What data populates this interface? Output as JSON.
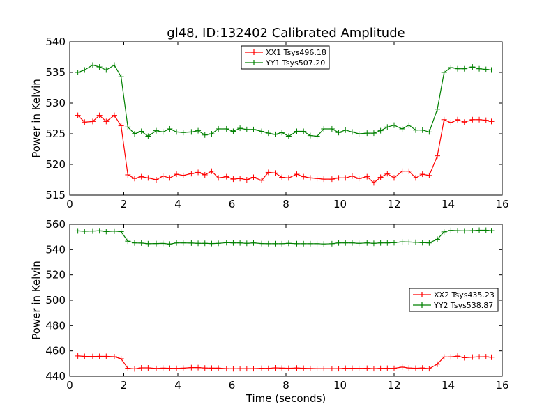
{
  "chart_data": [
    {
      "type": "line",
      "title": "gl48, ID:132402 Calibrated Amplitude",
      "xlabel": "",
      "ylabel": "Power in Kelvin",
      "xlim": [
        0,
        16
      ],
      "ylim": [
        515,
        540
      ],
      "xticks": [
        0,
        2,
        4,
        6,
        8,
        10,
        12,
        14,
        16
      ],
      "yticks": [
        515,
        520,
        525,
        530,
        535,
        540
      ],
      "grid": false,
      "legend": "top-center",
      "x": [
        0.3,
        0.55,
        0.85,
        1.1,
        1.35,
        1.65,
        1.9,
        2.15,
        2.4,
        2.65,
        2.9,
        3.2,
        3.45,
        3.7,
        3.95,
        4.2,
        4.5,
        4.75,
        5.0,
        5.25,
        5.5,
        5.8,
        6.05,
        6.3,
        6.55,
        6.8,
        7.1,
        7.35,
        7.6,
        7.85,
        8.1,
        8.4,
        8.65,
        8.9,
        9.15,
        9.4,
        9.7,
        9.95,
        10.2,
        10.45,
        10.7,
        11.0,
        11.25,
        11.5,
        11.75,
        12.0,
        12.3,
        12.55,
        12.8,
        13.05,
        13.3,
        13.6,
        13.85,
        14.1,
        14.35,
        14.6,
        14.9,
        15.15,
        15.4,
        15.6
      ],
      "series": [
        {
          "name": "XX1 Tsys496.18",
          "color": "#ff0000",
          "values": [
            528.0,
            526.9,
            527.0,
            528.0,
            527.0,
            528.0,
            526.3,
            518.3,
            517.7,
            518.0,
            517.8,
            517.5,
            518.1,
            517.8,
            518.4,
            518.2,
            518.5,
            518.7,
            518.3,
            518.9,
            517.8,
            518.0,
            517.6,
            517.7,
            517.5,
            517.9,
            517.4,
            518.7,
            518.6,
            517.9,
            517.8,
            518.4,
            518.0,
            517.8,
            517.7,
            517.6,
            517.6,
            517.8,
            517.8,
            518.1,
            517.7,
            518.0,
            517.0,
            517.9,
            518.5,
            517.8,
            518.9,
            518.9,
            517.8,
            518.4,
            518.2,
            521.4,
            527.3,
            526.8,
            527.3,
            526.9,
            527.3,
            527.3,
            527.2,
            527.0
          ]
        },
        {
          "name": "YY1 Tsys507.20",
          "color": "#008000",
          "values": [
            535.0,
            535.4,
            536.2,
            535.9,
            535.4,
            536.2,
            534.3,
            526.1,
            525.0,
            525.4,
            524.6,
            525.5,
            525.3,
            525.8,
            525.3,
            525.2,
            525.3,
            525.5,
            524.8,
            525.0,
            525.8,
            525.8,
            525.4,
            525.9,
            525.7,
            525.7,
            525.4,
            525.1,
            524.9,
            525.2,
            524.6,
            525.4,
            525.4,
            524.7,
            524.6,
            525.8,
            525.8,
            525.2,
            525.6,
            525.3,
            525.0,
            525.1,
            525.1,
            525.5,
            526.1,
            526.4,
            525.8,
            526.4,
            525.6,
            525.6,
            525.3,
            529.0,
            535.0,
            535.8,
            535.6,
            535.6,
            535.9,
            535.6,
            535.5,
            535.4
          ]
        }
      ]
    },
    {
      "type": "line",
      "title": "",
      "xlabel": "Time (seconds)",
      "ylabel": "Power in Kelvin",
      "xlim": [
        0,
        16
      ],
      "ylim": [
        440,
        560
      ],
      "xticks": [
        0,
        2,
        4,
        6,
        8,
        10,
        12,
        14,
        16
      ],
      "yticks": [
        440,
        460,
        480,
        500,
        520,
        540,
        560
      ],
      "grid": false,
      "legend": "center-right",
      "x": [
        0.3,
        0.55,
        0.85,
        1.1,
        1.35,
        1.65,
        1.9,
        2.15,
        2.4,
        2.65,
        2.9,
        3.2,
        3.45,
        3.7,
        3.95,
        4.2,
        4.5,
        4.75,
        5.0,
        5.25,
        5.5,
        5.8,
        6.05,
        6.3,
        6.55,
        6.8,
        7.1,
        7.35,
        7.6,
        7.85,
        8.1,
        8.4,
        8.65,
        8.9,
        9.15,
        9.4,
        9.7,
        9.95,
        10.2,
        10.45,
        10.7,
        11.0,
        11.25,
        11.5,
        11.75,
        12.0,
        12.3,
        12.55,
        12.8,
        13.05,
        13.3,
        13.6,
        13.85,
        14.1,
        14.35,
        14.6,
        14.9,
        15.15,
        15.4,
        15.6
      ],
      "series": [
        {
          "name": "XX2 Tsys435.23",
          "color": "#ff0000",
          "values": [
            456.0,
            455.7,
            455.6,
            455.7,
            455.7,
            455.4,
            453.8,
            446.3,
            445.8,
            446.6,
            446.6,
            446.1,
            446.4,
            446.3,
            446.2,
            446.4,
            446.8,
            446.8,
            446.5,
            446.4,
            446.4,
            446.0,
            445.9,
            446.0,
            446.0,
            446.0,
            446.3,
            446.2,
            446.6,
            446.4,
            446.3,
            446.5,
            446.3,
            446.1,
            446.0,
            446.0,
            446.0,
            446.0,
            446.3,
            446.3,
            446.2,
            446.3,
            446.0,
            446.2,
            446.3,
            446.2,
            447.2,
            446.5,
            446.3,
            446.5,
            446.0,
            449.5,
            455.2,
            455.3,
            455.9,
            454.6,
            455.1,
            455.3,
            455.4,
            455.0
          ]
        },
        {
          "name": "YY2 Tsys538.87",
          "color": "#008000",
          "values": [
            554.8,
            554.5,
            554.7,
            554.9,
            554.3,
            554.6,
            554.2,
            546.7,
            545.3,
            545.2,
            544.7,
            544.8,
            544.9,
            544.4,
            545.3,
            545.3,
            545.2,
            545.0,
            545.0,
            544.8,
            545.0,
            545.5,
            545.3,
            545.3,
            545.0,
            545.3,
            544.8,
            544.7,
            544.7,
            544.7,
            545.0,
            544.7,
            544.7,
            544.7,
            544.7,
            544.5,
            544.7,
            545.3,
            545.3,
            545.3,
            545.0,
            545.3,
            545.0,
            545.3,
            545.3,
            545.5,
            546.2,
            546.0,
            545.8,
            545.5,
            545.3,
            548.2,
            554.0,
            555.2,
            555.0,
            554.8,
            555.0,
            555.3,
            555.3,
            555.0
          ]
        }
      ]
    }
  ]
}
